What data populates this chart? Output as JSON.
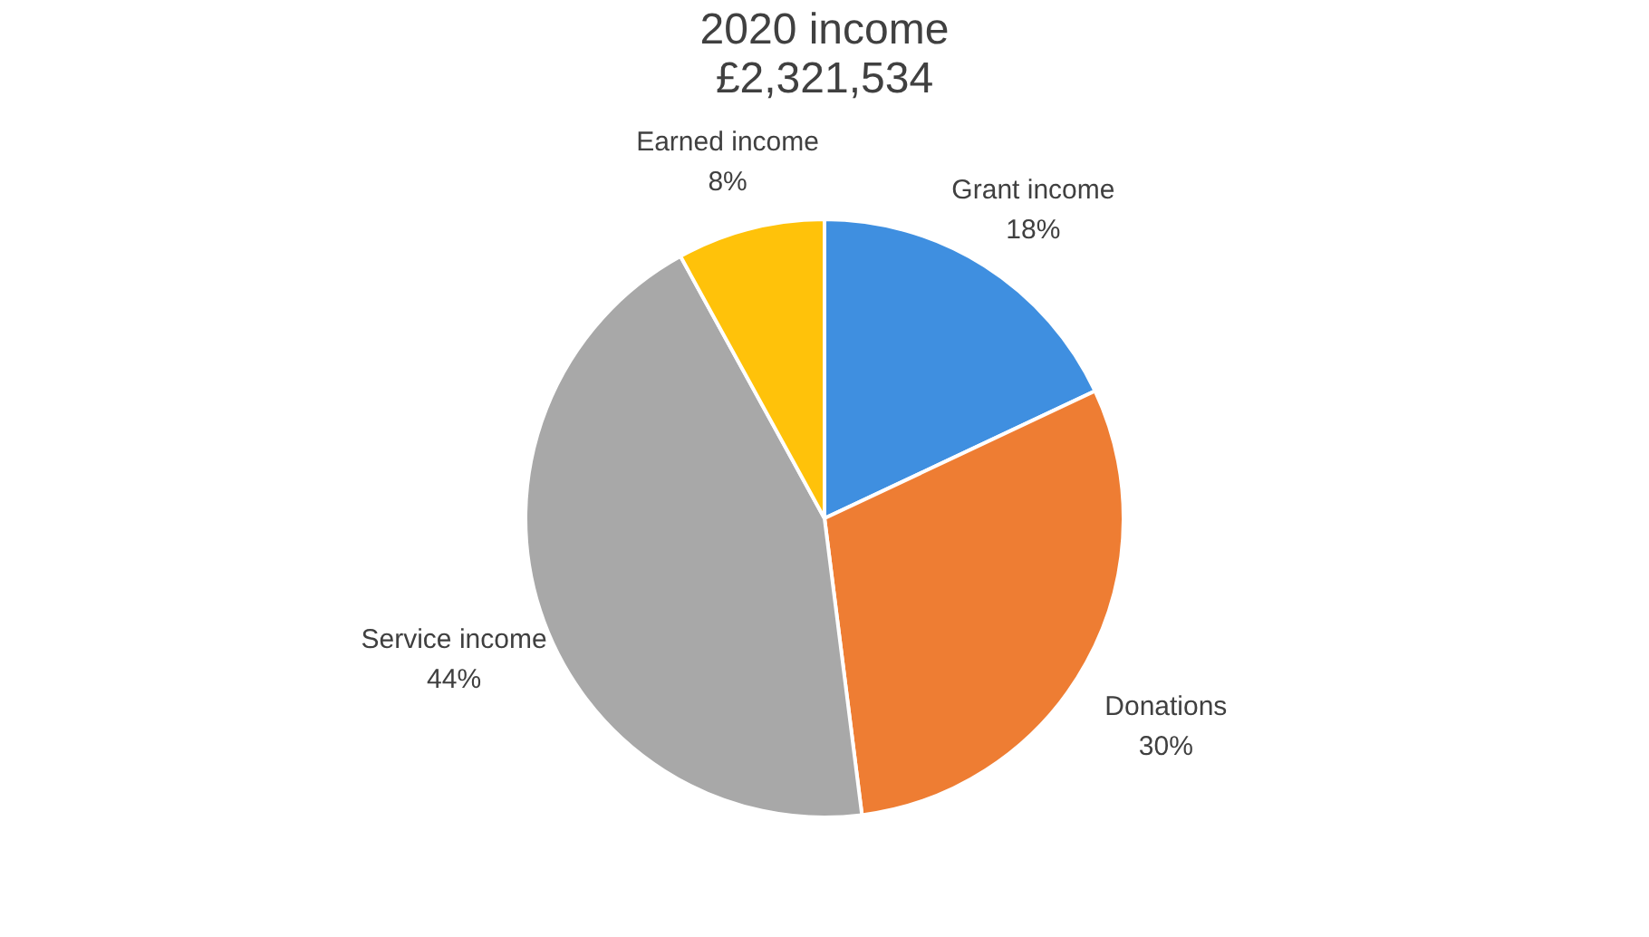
{
  "chart_data": {
    "type": "pie",
    "title": "2020 income",
    "subtitle": "£2,321,534",
    "categories": [
      "Grant income",
      "Donations",
      "Service income",
      "Earned income"
    ],
    "values": [
      18,
      30,
      44,
      8
    ],
    "colors": [
      "#3f8fe0",
      "#ee7d33",
      "#a8a8a8",
      "#ffc20a"
    ],
    "value_labels": [
      "18%",
      "30%",
      "44%",
      "8%"
    ],
    "legend": false
  }
}
